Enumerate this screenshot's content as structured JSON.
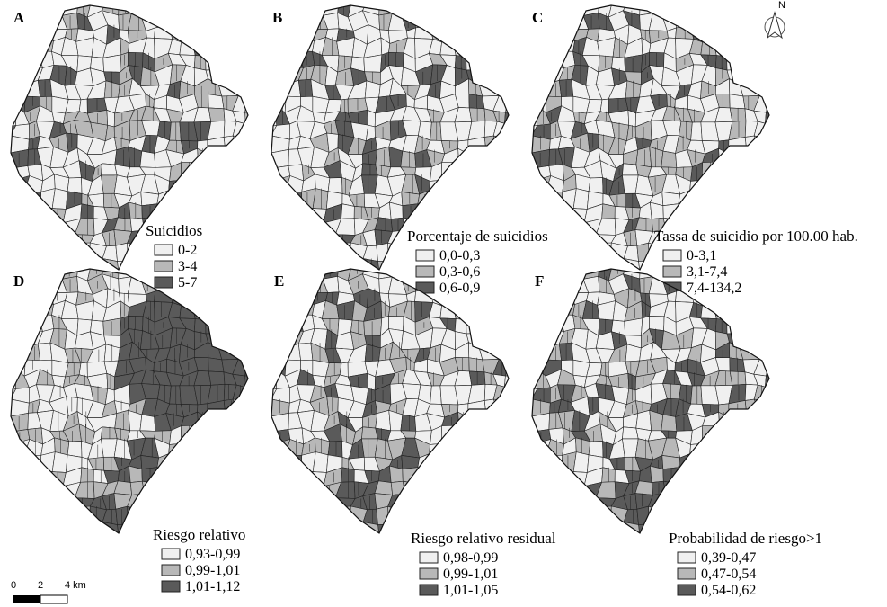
{
  "panels": [
    {
      "letter": "A",
      "legend": {
        "title": "Suicidios",
        "items": [
          "0-2",
          "3-4",
          "5-7"
        ]
      }
    },
    {
      "letter": "B",
      "legend": {
        "title": "Porcentaje de suicidios",
        "items": [
          "0,0-0,3",
          "0,3-0,6",
          "0,6-0,9"
        ]
      }
    },
    {
      "letter": "C",
      "legend": {
        "title": "Tassa de suicidio por 100.00 hab.",
        "items": [
          "0-3,1",
          "3,1-7,4",
          "7,4-134,2"
        ]
      }
    },
    {
      "letter": "D",
      "legend": {
        "title": "Riesgo relativo",
        "items": [
          "0,93-0,99",
          "0,99-1,01",
          "1,01-1,12"
        ]
      }
    },
    {
      "letter": "E",
      "legend": {
        "title": "Riesgo relativo residual",
        "items": [
          "0,98-0,99",
          "0,99-1,01",
          "1,01-1,05"
        ]
      }
    },
    {
      "letter": "F",
      "legend": {
        "title": "Probabilidad de riesgo>1",
        "items": [
          "0,39-0,47",
          "0,47-0,54",
          "0,54-0,62"
        ]
      }
    }
  ],
  "scale_bar": {
    "labels": [
      "0",
      "2",
      "4 km"
    ]
  },
  "north_arrow": "N"
}
